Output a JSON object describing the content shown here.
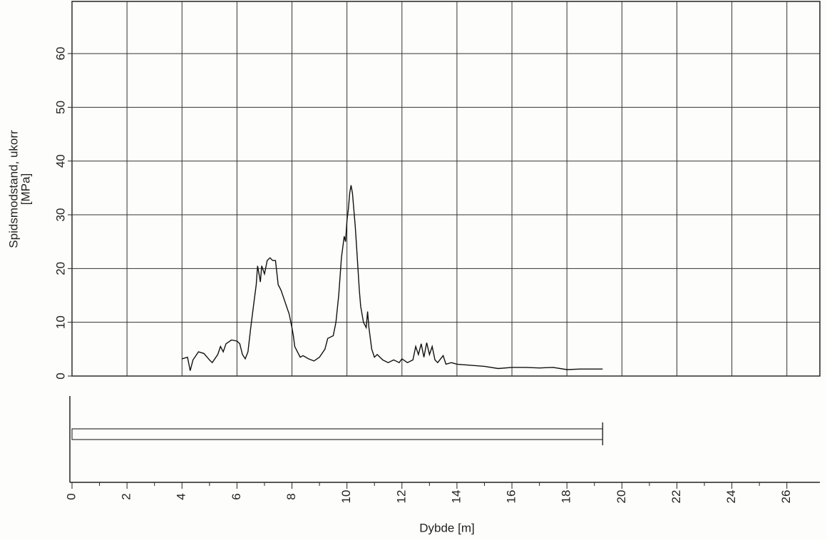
{
  "chart_data": [
    {
      "type": "line",
      "ylabel": [
        "Spidsmodstand, ukorr",
        "[MPa]"
      ],
      "xlim": [
        0,
        27.2
      ],
      "ylim": [
        0,
        69.7
      ],
      "yticks": [
        0,
        10,
        20,
        30,
        40,
        50,
        60
      ],
      "grid": true,
      "color": "#111111",
      "x": [
        4.0,
        4.2,
        4.3,
        4.4,
        4.6,
        4.8,
        5.0,
        5.1,
        5.3,
        5.4,
        5.5,
        5.6,
        5.8,
        6.0,
        6.1,
        6.2,
        6.3,
        6.4,
        6.5,
        6.6,
        6.7,
        6.75,
        6.8,
        6.85,
        6.9,
        7.0,
        7.1,
        7.2,
        7.3,
        7.4,
        7.5,
        7.6,
        7.7,
        7.8,
        7.9,
        8.0,
        8.05,
        8.1,
        8.2,
        8.3,
        8.4,
        8.6,
        8.8,
        9.0,
        9.2,
        9.3,
        9.5,
        9.6,
        9.7,
        9.8,
        9.9,
        9.95,
        10.0,
        10.05,
        10.1,
        10.15,
        10.2,
        10.25,
        10.3,
        10.35,
        10.4,
        10.45,
        10.5,
        10.6,
        10.7,
        10.75,
        10.8,
        10.9,
        11.0,
        11.1,
        11.3,
        11.5,
        11.7,
        11.9,
        12.0,
        12.2,
        12.4,
        12.5,
        12.6,
        12.7,
        12.8,
        12.9,
        13.0,
        13.1,
        13.2,
        13.3,
        13.5,
        13.6,
        13.8,
        14.0,
        14.5,
        15.0,
        15.5,
        16.0,
        16.5,
        17.0,
        17.5,
        18.0,
        18.5,
        19.0,
        19.3
      ],
      "values": [
        3.2,
        3.5,
        1.0,
        3.0,
        4.5,
        4.2,
        3.0,
        2.5,
        4.0,
        5.5,
        4.5,
        6.0,
        6.7,
        6.5,
        6.0,
        4.0,
        3.2,
        4.5,
        9.0,
        13,
        17,
        20.5,
        19,
        17.5,
        20.5,
        19,
        21.5,
        22,
        21.5,
        21.5,
        17,
        16,
        14.5,
        13,
        11.5,
        9,
        7.5,
        5.5,
        4.5,
        3.5,
        3.8,
        3.2,
        2.8,
        3.5,
        5.0,
        7.0,
        7.5,
        10,
        15,
        22,
        26,
        25,
        29,
        31,
        34,
        35.5,
        34,
        31,
        28,
        24,
        20,
        16,
        13,
        10,
        9,
        12,
        9,
        5,
        3.5,
        4.0,
        3.0,
        2.5,
        3.0,
        2.5,
        3.2,
        2.5,
        3.0,
        5.5,
        4.0,
        6.0,
        3.5,
        6.2,
        4.0,
        5.5,
        3.0,
        2.5,
        3.8,
        2.2,
        2.5,
        2.2,
        2.0,
        1.8,
        1.4,
        1.6,
        1.6,
        1.5,
        1.6,
        1.2,
        1.3,
        1.3,
        1.3
      ]
    },
    {
      "type": "bar",
      "xlabel": "Dybde  [m]",
      "xlim": [
        0,
        27.2
      ],
      "xticks": [
        0,
        2,
        4,
        6,
        8,
        10,
        12,
        14,
        16,
        18,
        20,
        22,
        24,
        26
      ],
      "categories": [
        null
      ],
      "values": [
        19.3
      ],
      "color": "#333333"
    }
  ]
}
